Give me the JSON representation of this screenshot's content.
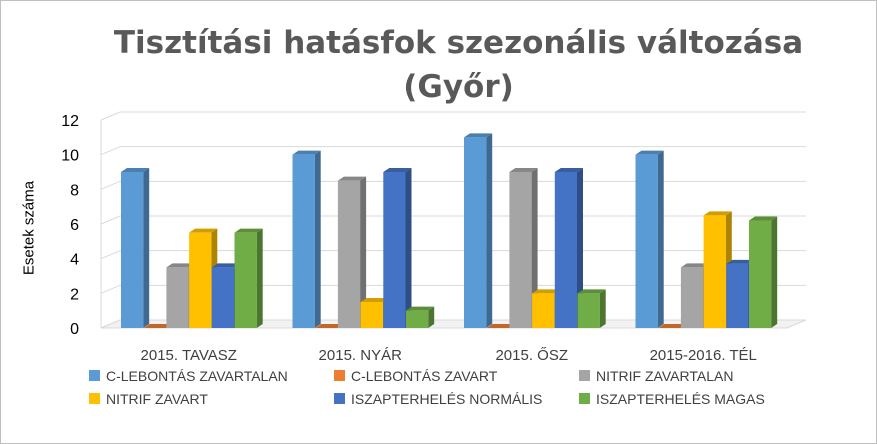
{
  "chart_data": {
    "type": "bar",
    "title_lines": [
      "Tisztítási hatásfok szezonális változása",
      "(Győr)"
    ],
    "xlabel": "",
    "ylabel": "Esetek száma",
    "ylim": [
      0,
      12
    ],
    "yticks": [
      "0",
      "2",
      "4",
      "6",
      "8",
      "10",
      "12"
    ],
    "grid": true,
    "legend_position": "bottom",
    "categories": [
      "2015. TAVASZ",
      "2015. NYÁR",
      "2015. ŐSZ",
      "2015-2016. TÉL"
    ],
    "series": [
      {
        "name": "C-LEBONTÁS ZAVARTALAN",
        "color": "#5b9bd5",
        "values": [
          9,
          10,
          11,
          10
        ]
      },
      {
        "name": "C-LEBONTÁS ZAVART",
        "color": "#ed7d31",
        "values": [
          0,
          0,
          0,
          0
        ]
      },
      {
        "name": "NITRIF ZAVARTALAN",
        "color": "#a5a5a5",
        "values": [
          3.5,
          8.5,
          9,
          3.5
        ]
      },
      {
        "name": "NITRIF ZAVART",
        "color": "#ffc000",
        "values": [
          5.5,
          1.5,
          2,
          6.5
        ]
      },
      {
        "name": "ISZAPTERHELÉS NORMÁLIS",
        "color": "#4472c4",
        "values": [
          3.5,
          9,
          9,
          3.7
        ]
      },
      {
        "name": "ISZAPTERHELÉS MAGAS",
        "color": "#70ad47",
        "values": [
          5.5,
          1,
          2,
          6.2
        ]
      }
    ]
  }
}
